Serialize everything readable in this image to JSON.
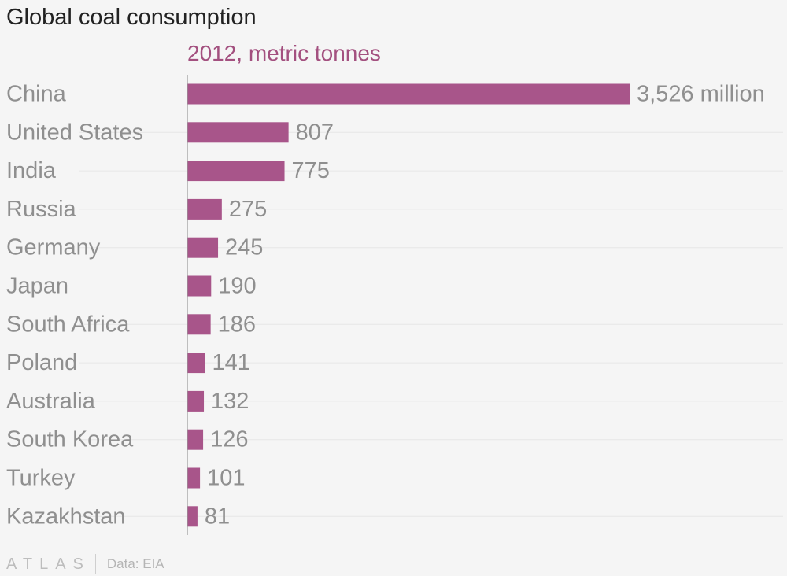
{
  "chart_data": {
    "type": "bar",
    "orientation": "horizontal",
    "title": "Global coal consumption",
    "subtitle": "2012, metric tonnes",
    "categories": [
      "China",
      "United States",
      "India",
      "Russia",
      "Germany",
      "Japan",
      "South Africa",
      "Poland",
      "Australia",
      "South Korea",
      "Turkey",
      "Kazakhstan"
    ],
    "values": [
      3526,
      807,
      775,
      275,
      245,
      190,
      186,
      141,
      132,
      126,
      101,
      81
    ],
    "value_labels": [
      "3,526 million",
      "807",
      "775",
      "275",
      "245",
      "190",
      "186",
      "141",
      "132",
      "126",
      "101",
      "81"
    ],
    "unit": "million metric tonnes",
    "xlim": [
      0,
      3526
    ],
    "grid": true,
    "legend": "none",
    "bar_color": "#a8558a"
  },
  "footer": {
    "brand": "ATLAS",
    "source": "Data: EIA"
  }
}
